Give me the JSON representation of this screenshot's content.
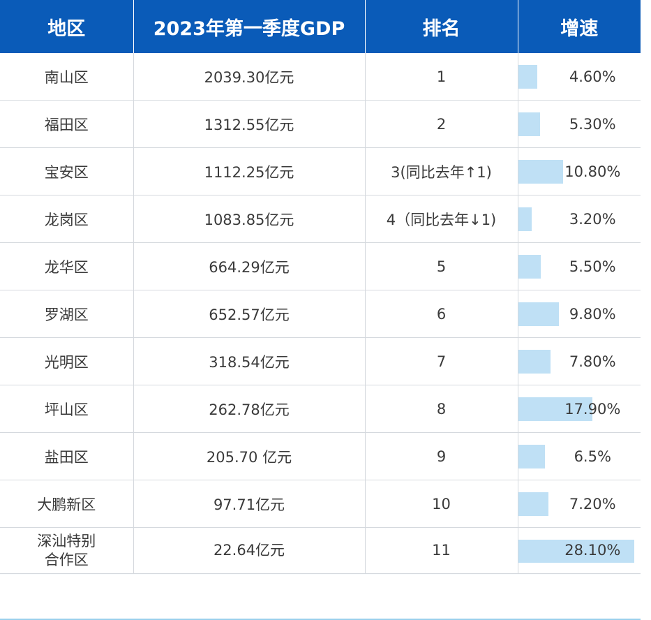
{
  "headers": {
    "region": "地区",
    "gdp": "2023年第一季度GDP",
    "rank": "排名",
    "growth": "增速"
  },
  "rows": [
    {
      "region": "南山区",
      "gdp": "2039.30亿元",
      "rank": "1",
      "growth": "4.60%",
      "growth_value": 4.6
    },
    {
      "region": "福田区",
      "gdp": "1312.55亿元",
      "rank": "2",
      "growth": "5.30%",
      "growth_value": 5.3
    },
    {
      "region": "宝安区",
      "gdp": "1112.25亿元",
      "rank": "3(同比去年↑1)",
      "growth": "10.80%",
      "growth_value": 10.8
    },
    {
      "region": "龙岗区",
      "gdp": "1083.85亿元",
      "rank": "4（同比去年↓1)",
      "growth": "3.20%",
      "growth_value": 3.2
    },
    {
      "region": "龙华区",
      "gdp": "664.29亿元",
      "rank": "5",
      "growth": "5.50%",
      "growth_value": 5.5
    },
    {
      "region": "罗湖区",
      "gdp": "652.57亿元",
      "rank": "6",
      "growth": "9.80%",
      "growth_value": 9.8
    },
    {
      "region": "光明区",
      "gdp": "318.54亿元",
      "rank": "7",
      "growth": "7.80%",
      "growth_value": 7.8
    },
    {
      "region": "坪山区",
      "gdp": "262.78亿元",
      "rank": "8",
      "growth": "17.90%",
      "growth_value": 17.9
    },
    {
      "region": "盐田区",
      "gdp": "205.70 亿元",
      "rank": "9",
      "growth": "6.5%",
      "growth_value": 6.5
    },
    {
      "region": "大鹏新区",
      "gdp": "97.71亿元",
      "rank": "10",
      "growth": "7.20%",
      "growth_value": 7.2
    },
    {
      "region": "深汕特别\n合作区",
      "gdp": "22.64亿元",
      "rank": "11",
      "growth": "28.10%",
      "growth_value": 28.1
    }
  ],
  "colors": {
    "header_bg": "#0a5bb8",
    "header_text": "#ffffff",
    "bar": "#bfe0f5",
    "grid": "#d5d9de"
  }
}
